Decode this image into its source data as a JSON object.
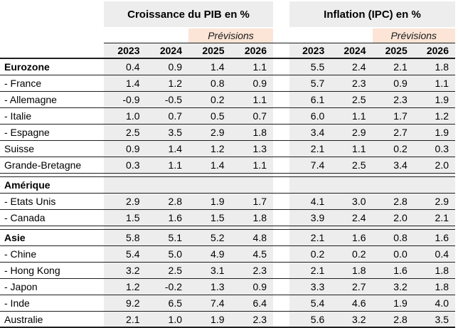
{
  "chart_data": {
    "type": "table",
    "title_left": "Croissance du PIB en %",
    "title_right": "Inflation (IPC) en %",
    "forecast_label": "Prévisions",
    "forecast_years": [
      "2025",
      "2026"
    ],
    "years": [
      "2023",
      "2024",
      "2025",
      "2026"
    ],
    "columns_left_group": [
      "2023",
      "2024",
      "2025",
      "2026"
    ],
    "columns_right_group": [
      "2023",
      "2024",
      "2025",
      "2026"
    ],
    "rows": [
      {
        "label": "Eurozone",
        "bold": true,
        "section_break_before": false,
        "gdp": [
          "0.4",
          "0.9",
          "1.4",
          "1.1"
        ],
        "cpi": [
          "5.5",
          "2.4",
          "2.1",
          "1.8"
        ]
      },
      {
        "label": "- France",
        "bold": false,
        "section_break_before": false,
        "gdp": [
          "1.4",
          "1.2",
          "0.8",
          "0.9"
        ],
        "cpi": [
          "5.7",
          "2.3",
          "0.9",
          "1.1"
        ]
      },
      {
        "label": "- Allemagne",
        "bold": false,
        "section_break_before": false,
        "gdp": [
          "-0.9",
          "-0.5",
          "0.2",
          "1.1"
        ],
        "cpi": [
          "6.1",
          "2.5",
          "2.3",
          "1.9"
        ]
      },
      {
        "label": "- Italie",
        "bold": false,
        "section_break_before": false,
        "gdp": [
          "1.0",
          "0.7",
          "0.5",
          "0.7"
        ],
        "cpi": [
          "6.0",
          "1.1",
          "1.7",
          "1.2"
        ]
      },
      {
        "label": "- Espagne",
        "bold": false,
        "section_break_before": false,
        "gdp": [
          "2.5",
          "3.5",
          "2.9",
          "1.8"
        ],
        "cpi": [
          "3.4",
          "2.9",
          "2.7",
          "1.9"
        ]
      },
      {
        "label": "Suisse",
        "bold": false,
        "section_break_before": false,
        "gdp": [
          "0.9",
          "1.4",
          "1.2",
          "1.3"
        ],
        "cpi": [
          "2.1",
          "1.1",
          "0.2",
          "0.3"
        ]
      },
      {
        "label": "Grande-Bretagne",
        "bold": false,
        "section_break_before": false,
        "gdp": [
          "0.3",
          "1.1",
          "1.4",
          "1.1"
        ],
        "cpi": [
          "7.4",
          "2.5",
          "3.4",
          "2.0"
        ]
      },
      {
        "label": "Amérique",
        "bold": true,
        "section_break_before": true,
        "gdp": [
          "",
          "",
          "",
          ""
        ],
        "cpi": [
          "",
          "",
          "",
          ""
        ]
      },
      {
        "label": "- Etats Unis",
        "bold": false,
        "section_break_before": false,
        "gdp": [
          "2.9",
          "2.8",
          "1.9",
          "1.7"
        ],
        "cpi": [
          "4.1",
          "3.0",
          "2.8",
          "2.9"
        ]
      },
      {
        "label": "- Canada",
        "bold": false,
        "section_break_before": false,
        "gdp": [
          "1.5",
          "1.6",
          "1.5",
          "1.8"
        ],
        "cpi": [
          "3.9",
          "2.4",
          "2.0",
          "2.1"
        ]
      },
      {
        "label": "Asie",
        "bold": true,
        "section_break_before": true,
        "gdp": [
          "5.8",
          "5.1",
          "5.2",
          "4.8"
        ],
        "cpi": [
          "2.1",
          "1.6",
          "0.8",
          "1.6"
        ]
      },
      {
        "label": "- Chine",
        "bold": false,
        "section_break_before": false,
        "gdp": [
          "5.4",
          "5.0",
          "4.9",
          "4.5"
        ],
        "cpi": [
          "0.2",
          "0.2",
          "0.0",
          "0.4"
        ]
      },
      {
        "label": "- Hong Kong",
        "bold": false,
        "section_break_before": false,
        "gdp": [
          "3.2",
          "2.5",
          "3.1",
          "2.3"
        ],
        "cpi": [
          "2.1",
          "1.8",
          "1.6",
          "1.8"
        ]
      },
      {
        "label": "- Japon",
        "bold": false,
        "section_break_before": false,
        "gdp": [
          "1.2",
          "-0.2",
          "1.3",
          "0.9"
        ],
        "cpi": [
          "3.3",
          "2.7",
          "3.2",
          "1.8"
        ]
      },
      {
        "label": "- Inde",
        "bold": false,
        "section_break_before": false,
        "gdp": [
          "9.2",
          "6.5",
          "7.4",
          "6.4"
        ],
        "cpi": [
          "5.4",
          "4.6",
          "1.9",
          "4.0"
        ]
      },
      {
        "label": "Australie",
        "bold": false,
        "section_break_before": false,
        "gdp": [
          "2.1",
          "1.0",
          "1.9",
          "2.3"
        ],
        "cpi": [
          "5.6",
          "3.2",
          "2.8",
          "3.5"
        ]
      }
    ]
  },
  "colors": {
    "group_header_bg": "#ededed",
    "column_stripe_bg": "#ededed",
    "forecast_bg": "#fce4d6",
    "rule_color": "#1f1f1f",
    "text_color": "#000000"
  }
}
